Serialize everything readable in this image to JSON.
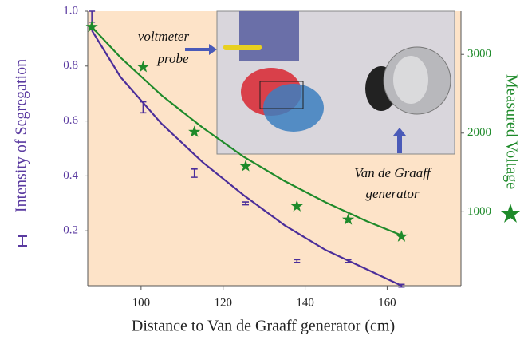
{
  "chart_data": {
    "type": "scatter",
    "x_label": "Distance to Van de Graaff generator (cm)",
    "xlim": [
      87,
      178
    ],
    "xticks": [
      100,
      120,
      140,
      160
    ],
    "ylim": [
      0,
      1
    ],
    "yticks": [
      0.2,
      0.4,
      0.6,
      0.8,
      {
        "value": 1,
        "label": "1.0"
      }
    ],
    "y2lim": [
      60,
      3550
    ],
    "y2ticks": [
      1000,
      2000,
      3000
    ],
    "series": [
      {
        "name": "Intensity of Segregation",
        "color": "#4b2e9a",
        "axis": "y",
        "marker": "errorbar",
        "x": [
          88,
          100.5,
          113,
          125.5,
          138,
          150.5,
          163.5
        ],
        "values": [
          0.98,
          0.65,
          0.41,
          0.3,
          0.09,
          0.09,
          0.0
        ],
        "errors": [
          0.02,
          0.02,
          0.015,
          0.005,
          0.005,
          0.005,
          0.005
        ]
      },
      {
        "name": "Measured Voltage",
        "color": "#1e8a2a",
        "axis": "y2",
        "marker": "star",
        "x": [
          88,
          100.5,
          113,
          125.5,
          138,
          150.5,
          163.5
        ],
        "values": [
          3350,
          2840,
          2015,
          1580,
          1070,
          900,
          685
        ]
      }
    ],
    "fits": [
      {
        "color": "#4b2e9a",
        "axis": "y",
        "x": [
          88,
          95,
          105,
          115,
          125,
          135,
          145,
          155,
          163.5
        ],
        "values": [
          0.93,
          0.76,
          0.59,
          0.45,
          0.33,
          0.22,
          0.13,
          0.06,
          0.0
        ]
      },
      {
        "color": "#1e8a2a",
        "axis": "y2",
        "x": [
          88,
          95,
          105,
          115,
          125,
          135,
          145,
          155,
          163.5
        ],
        "values": [
          3350,
          2960,
          2480,
          2070,
          1700,
          1390,
          1120,
          880,
          700
        ]
      }
    ],
    "annotations": [
      [
        "voltmeter",
        "probe"
      ],
      [
        "Van de Graaff",
        "generator"
      ]
    ]
  }
}
